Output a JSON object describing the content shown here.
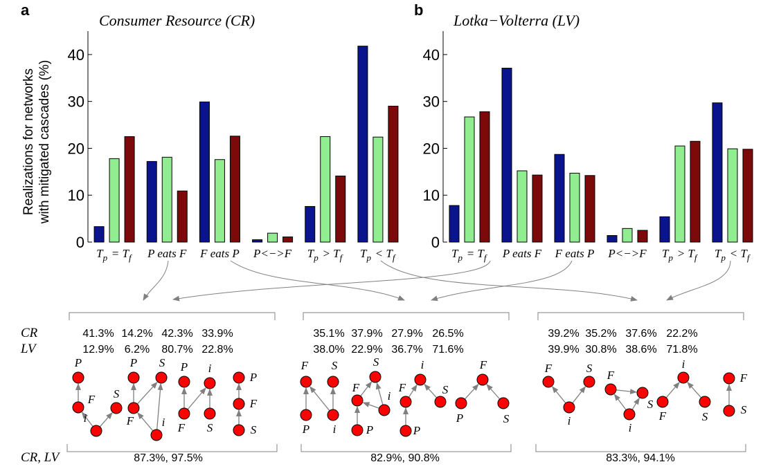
{
  "chart_data": [
    {
      "panel_letter": "a",
      "type": "bar",
      "title": "Consumer Resource (CR)",
      "ylabel": "Realizations for networks with mitigated cascades (%)",
      "ylim": [
        0,
        45
      ],
      "yticks": [
        0,
        10,
        20,
        30,
        40
      ],
      "categories": [
        "T_p = T_f",
        "P eats F",
        "F eats P",
        "P<−>F",
        "T_p > T_f",
        "T_p < T_f"
      ],
      "series_colors": [
        "#0a148c",
        "#90ee90",
        "#7d0a0a"
      ],
      "series": [
        {
          "values": [
            3.3,
            17.2,
            29.9,
            0.5,
            7.6,
            41.8
          ]
        },
        {
          "values": [
            17.8,
            18.1,
            17.6,
            1.9,
            22.5,
            22.4
          ]
        },
        {
          "values": [
            22.5,
            10.9,
            22.6,
            1.1,
            14.1,
            29.0
          ]
        }
      ]
    },
    {
      "panel_letter": "b",
      "type": "bar",
      "title": "Lotka−Volterra (LV)",
      "ylabel": "",
      "ylim": [
        0,
        45
      ],
      "yticks": [
        0,
        10,
        20,
        30,
        40
      ],
      "categories": [
        "T_p = T_f",
        "P eats F",
        "F eats P",
        "P<−>F",
        "T_p > T_f",
        "T_p < T_f"
      ],
      "series_colors": [
        "#0a148c",
        "#90ee90",
        "#7d0a0a"
      ],
      "series": [
        {
          "values": [
            7.8,
            37.1,
            18.7,
            1.4,
            5.4,
            29.7
          ]
        },
        {
          "values": [
            26.7,
            15.2,
            14.7,
            2.9,
            20.5,
            19.9
          ]
        },
        {
          "values": [
            27.8,
            14.3,
            14.2,
            2.5,
            21.5,
            19.8
          ]
        }
      ]
    }
  ],
  "motifs": {
    "row_labels": {
      "cr": "CR",
      "lv": "LV",
      "bottom": "CR,  LV"
    },
    "groups": [
      {
        "cr": [
          "41.3%",
          "14.2%",
          "42.3%",
          "33.9%"
        ],
        "lv": [
          "12.9%",
          "6.2%",
          "80.7%",
          "22.8%"
        ],
        "total": "87.3%,  97.5%"
      },
      {
        "cr": [
          "35.1%",
          "37.9%",
          "27.9%",
          "26.5%"
        ],
        "lv": [
          "38.0%",
          "22.9%",
          "36.7%",
          "71.6%"
        ],
        "total": "82.9%,  90.8%"
      },
      {
        "cr": [
          "39.2%",
          "35.2%",
          "37.6%",
          "22.2%"
        ],
        "lv": [
          "39.9%",
          "30.8%",
          "38.6%",
          "71.8%"
        ],
        "total": "83.3%,  94.1%"
      }
    ],
    "node_labels": {
      "P": "P",
      "F": "F",
      "S": "S",
      "i": "i"
    },
    "node_color": "#ff0000",
    "arrow_color": "#808080"
  }
}
